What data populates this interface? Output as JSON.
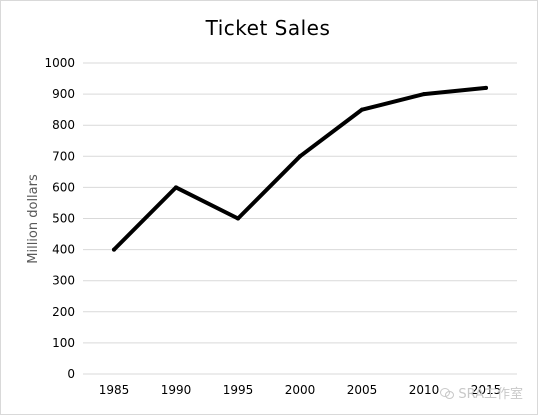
{
  "chart_data": {
    "type": "line",
    "title": "Ticket Sales",
    "xlabel": "",
    "ylabel": "Million dollars",
    "categories": [
      "1985",
      "1990",
      "1995",
      "2000",
      "2005",
      "2010",
      "2015"
    ],
    "series": [
      {
        "values": [
          400,
          600,
          500,
          700,
          850,
          900,
          920
        ],
        "color": "#000000"
      }
    ],
    "ylim": [
      0,
      1000
    ],
    "yticks": [
      0,
      100,
      200,
      300,
      400,
      500,
      600,
      700,
      800,
      900,
      1000
    ],
    "grid": true,
    "legend": "none"
  },
  "watermark": {
    "text": "SRA工作室",
    "icon": "wechat-icon"
  }
}
